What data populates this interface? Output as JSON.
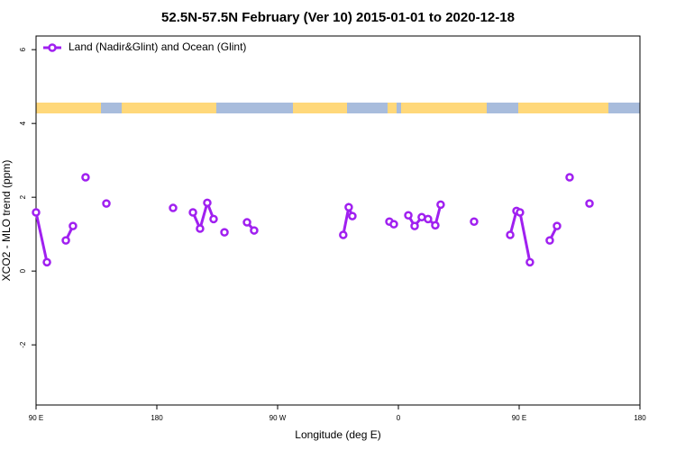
{
  "chart_data": {
    "type": "line",
    "title": "52.5N-57.5N February (Ver 10)   2015-01-01 to 2020-12-18",
    "x_label": "Longitude (deg E)",
    "y_label": "XCO2 - MLO trend (ppm)",
    "xlim": [
      90,
      540
    ],
    "ylim": [
      -3.63,
      6.37
    ],
    "xticks": [
      {
        "value": 90,
        "label": "90 E"
      },
      180,
      {
        "value": 270,
        "label": "90 W"
      },
      {
        "value": 360,
        "label": "0"
      },
      {
        "value": 450,
        "label": "90 E"
      },
      {
        "value": 540,
        "label": "180"
      }
    ],
    "yticks": [
      -2,
      0,
      2,
      4,
      6
    ],
    "legend": "top-left",
    "series": [
      {
        "name": "Land (Nadir&Glint) and Ocean (Glint)",
        "color": "#a020f0",
        "x": [
          90,
          98.1,
          null,
          112.2,
          117.5,
          null,
          126.9,
          null,
          142.4,
          null,
          192.1,
          null,
          206.9,
          212.2,
          217.6,
          222.3,
          null,
          230.4,
          null,
          247.2,
          252.5,
          null,
          318.9,
          323.0,
          325.7,
          null,
          353.3,
          356.6,
          null,
          367.4,
          372.1,
          377.4,
          382.1,
          387.5,
          391.5,
          null,
          416.4,
          null,
          443.3,
          448.0,
          450.6,
          458.0,
          null,
          472.8,
          478.2,
          null,
          487.6,
          null,
          502.4
        ],
        "values": [
          1.59,
          0.24,
          null,
          0.83,
          1.22,
          null,
          2.54,
          null,
          1.83,
          null,
          1.71,
          null,
          1.59,
          1.15,
          1.85,
          1.41,
          null,
          1.05,
          null,
          1.32,
          1.1,
          null,
          0.98,
          1.73,
          1.49,
          null,
          1.34,
          1.27,
          null,
          1.51,
          1.22,
          1.46,
          1.41,
          1.24,
          1.8,
          null,
          1.34,
          null,
          0.98,
          1.63,
          1.59,
          0.24,
          null,
          0.83,
          1.22,
          null,
          2.54,
          null,
          1.83
        ]
      }
    ]
  }
}
